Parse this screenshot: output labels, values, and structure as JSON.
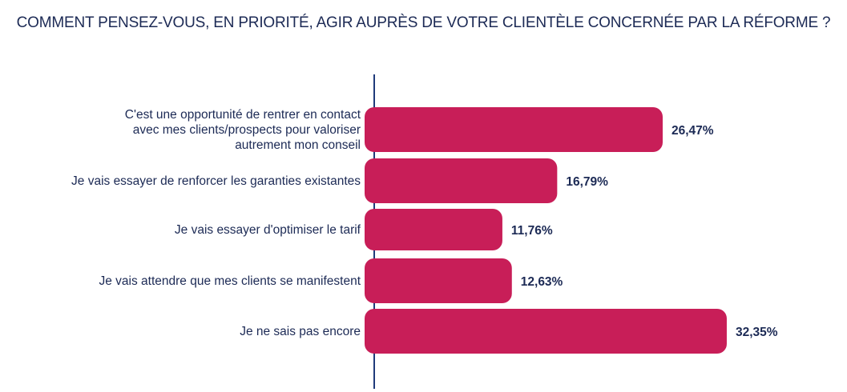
{
  "colors": {
    "bar": "#c81e58",
    "axis": "#1f3a7a",
    "text": "#1c2a55"
  },
  "chart_data": {
    "type": "bar",
    "orientation": "horizontal",
    "title": "COMMENT PENSEZ-VOUS, EN PRIORITÉ, AGIR AUPRÈS DE VOTRE CLIENTÈLE CONCERNÉE PAR LA RÉFORME ?",
    "categories": [
      [
        "C'est une opportunité de rentrer en contact",
        "avec mes clients/prospects pour valoriser",
        "autrement mon conseil"
      ],
      [
        "Je vais essayer de renforcer les garanties existantes"
      ],
      [
        "Je vais essayer d'optimiser le tarif"
      ],
      [
        "Je vais attendre que mes clients se manifestent"
      ],
      [
        "Je ne sais pas encore"
      ]
    ],
    "values": [
      26.47,
      16.79,
      11.76,
      12.63,
      32.35
    ],
    "value_labels": [
      "26,47%",
      "16,79%",
      "11,76%",
      "12,63%",
      "32,35%"
    ],
    "unit": "%",
    "grid": false,
    "legend": "none"
  }
}
